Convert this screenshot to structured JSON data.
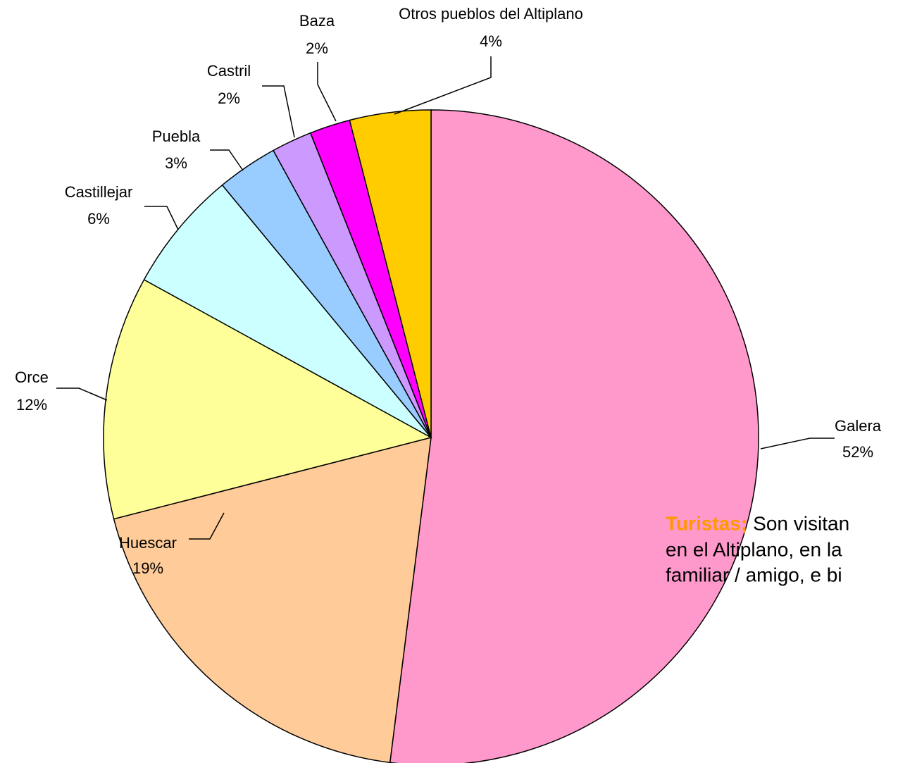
{
  "chart_data": {
    "type": "pie",
    "categories": [
      "Galera",
      "Huescar",
      "Orce",
      "Castillejar",
      "Puebla",
      "Castril",
      "Baza",
      "Otros pueblos del Altiplano"
    ],
    "values": [
      52,
      19,
      12,
      6,
      3,
      2,
      2,
      4
    ],
    "value_labels": [
      "52%",
      "19%",
      "12%",
      "6%",
      "3%",
      "2%",
      "2%",
      "4%"
    ],
    "colors": [
      "#ff99cc",
      "#ffcc99",
      "#ffff99",
      "#ccffff",
      "#99ccff",
      "#cc99ff",
      "#ff00ff",
      "#ffcc00"
    ],
    "annotation": {
      "label": "Turistas;",
      "lines": [
        "Son visitan",
        "en el Altiplano, en la",
        "familiar / amigo, e bi"
      ]
    }
  }
}
